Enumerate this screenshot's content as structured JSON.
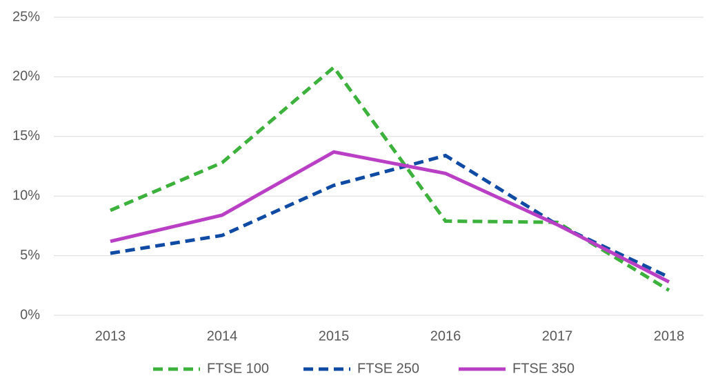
{
  "chart_data": {
    "type": "line",
    "categories": [
      "2013",
      "2014",
      "2015",
      "2016",
      "2017",
      "2018"
    ],
    "series": [
      {
        "name": "FTSE 100",
        "color": "#3cb13c",
        "style": "dashed",
        "values": [
          8.8,
          12.8,
          20.8,
          7.9,
          7.8,
          2.1
        ]
      },
      {
        "name": "FTSE 250",
        "color": "#0f4aa3",
        "style": "dashed",
        "values": [
          5.2,
          6.7,
          10.9,
          13.4,
          7.6,
          3.2
        ]
      },
      {
        "name": "FTSE 350",
        "color": "#b93fc4",
        "style": "solid",
        "values": [
          6.2,
          8.4,
          13.7,
          11.9,
          7.6,
          2.8
        ]
      }
    ],
    "ylim": [
      0,
      25
    ],
    "yticks": [
      {
        "value": 0,
        "label": "0%"
      },
      {
        "value": 5,
        "label": "5%"
      },
      {
        "value": 10,
        "label": "10%"
      },
      {
        "value": 15,
        "label": "15%"
      },
      {
        "value": 20,
        "label": "20%"
      },
      {
        "value": 25,
        "label": "25%"
      }
    ],
    "grid": true,
    "legend": "bottom"
  }
}
